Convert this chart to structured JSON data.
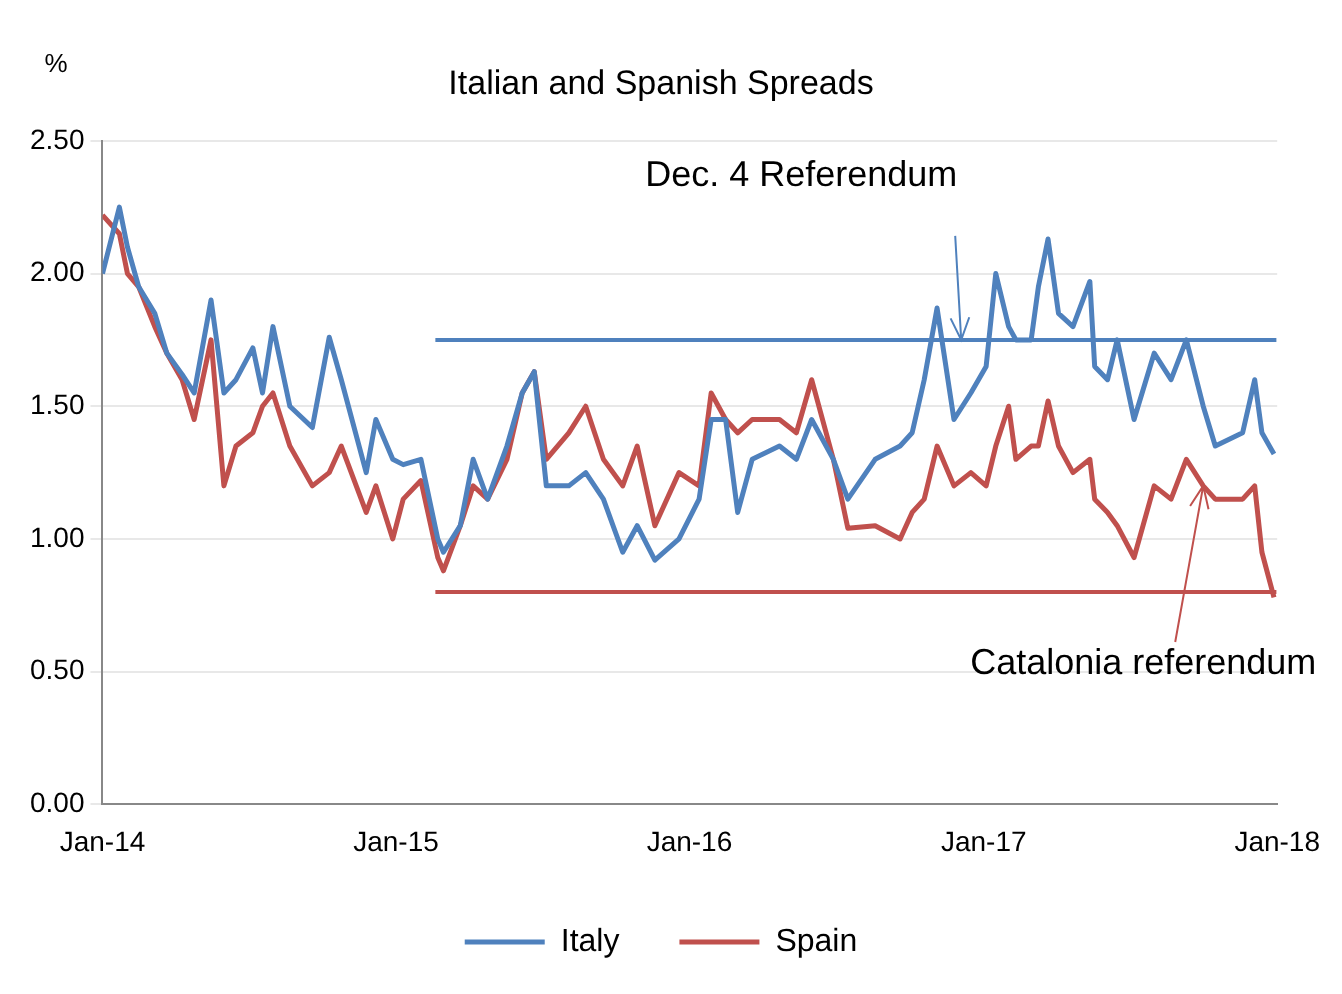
{
  "chart_data": {
    "type": "line",
    "title": "Italian and Spanish Spreads",
    "ylabel": "%",
    "x": [
      "2014-01-01",
      "2014-01-22",
      "2014-02-01",
      "2014-02-15",
      "2014-03-07",
      "2014-03-22",
      "2014-04-10",
      "2014-04-25",
      "2014-05-16",
      "2014-06-01",
      "2014-06-16",
      "2014-07-07",
      "2014-07-19",
      "2014-08-01",
      "2014-08-22",
      "2014-09-19",
      "2014-10-10",
      "2014-10-25",
      "2014-11-25",
      "2014-12-07",
      "2014-12-28",
      "2015-01-10",
      "2015-02-01",
      "2015-02-22",
      "2015-03-01",
      "2015-03-22",
      "2015-04-07",
      "2015-04-25",
      "2015-05-19",
      "2015-06-07",
      "2015-06-22",
      "2015-07-07",
      "2015-08-04",
      "2015-08-25",
      "2015-09-16",
      "2015-10-10",
      "2015-10-28",
      "2015-11-19",
      "2015-12-19",
      "2016-01-13",
      "2016-01-28",
      "2016-02-15",
      "2016-03-01",
      "2016-03-19",
      "2016-04-22",
      "2016-05-13",
      "2016-06-01",
      "2016-06-28",
      "2016-07-16",
      "2016-08-19",
      "2016-09-19",
      "2016-10-04",
      "2016-10-19",
      "2016-11-04",
      "2016-11-25",
      "2016-12-16",
      "2017-01-04",
      "2017-01-16",
      "2017-02-01",
      "2017-02-10",
      "2017-03-01",
      "2017-03-10",
      "2017-03-22",
      "2017-04-04",
      "2017-04-22",
      "2017-05-13",
      "2017-05-19",
      "2017-06-04",
      "2017-06-16",
      "2017-07-07",
      "2017-08-01",
      "2017-08-22",
      "2017-09-10",
      "2017-10-01",
      "2017-10-16",
      "2017-11-19",
      "2017-12-04",
      "2017-12-13",
      "2017-12-28"
    ],
    "series": [
      {
        "name": "Italy",
        "color": "#4f81bd",
        "values": [
          2.0,
          2.25,
          2.1,
          1.95,
          1.85,
          1.7,
          1.62,
          1.55,
          1.9,
          1.55,
          1.6,
          1.72,
          1.55,
          1.8,
          1.5,
          1.42,
          1.76,
          1.6,
          1.25,
          1.45,
          1.3,
          1.28,
          1.3,
          1.0,
          0.95,
          1.05,
          1.3,
          1.15,
          1.35,
          1.55,
          1.63,
          1.2,
          1.2,
          1.25,
          1.15,
          0.95,
          1.05,
          0.92,
          1.0,
          1.15,
          1.45,
          1.45,
          1.1,
          1.3,
          1.35,
          1.3,
          1.45,
          1.3,
          1.15,
          1.3,
          1.35,
          1.4,
          1.6,
          1.87,
          1.45,
          1.55,
          1.65,
          2.0,
          1.8,
          1.75,
          1.75,
          1.95,
          2.13,
          1.85,
          1.8,
          1.97,
          1.65,
          1.6,
          1.75,
          1.45,
          1.7,
          1.6,
          1.75,
          1.5,
          1.35,
          1.4,
          1.6,
          1.4,
          1.32
        ]
      },
      {
        "name": "Spain",
        "color": "#c0504d",
        "values": [
          2.22,
          2.15,
          2.0,
          1.95,
          1.8,
          1.7,
          1.6,
          1.45,
          1.75,
          1.2,
          1.35,
          1.4,
          1.5,
          1.55,
          1.35,
          1.2,
          1.25,
          1.35,
          1.1,
          1.2,
          1.0,
          1.15,
          1.22,
          0.93,
          0.88,
          1.05,
          1.2,
          1.15,
          1.3,
          1.55,
          1.63,
          1.3,
          1.4,
          1.5,
          1.3,
          1.2,
          1.35,
          1.05,
          1.25,
          1.2,
          1.55,
          1.45,
          1.4,
          1.45,
          1.45,
          1.4,
          1.6,
          1.3,
          1.04,
          1.05,
          1.0,
          1.1,
          1.15,
          1.35,
          1.2,
          1.25,
          1.2,
          1.35,
          1.5,
          1.3,
          1.35,
          1.35,
          1.52,
          1.35,
          1.25,
          1.3,
          1.15,
          1.1,
          1.05,
          0.93,
          1.2,
          1.15,
          1.3,
          1.2,
          1.15,
          1.15,
          1.2,
          0.95,
          0.78
        ]
      },
      {
        "type": "line",
        "color": "#4f81bd",
        "x": [
          "2015-02-19",
          "2017-12-31"
        ],
        "values": [
          1.75,
          1.75
        ]
      },
      {
        "type": "line",
        "color": "#c0504d",
        "x": [
          "2015-02-19",
          "2017-12-31"
        ],
        "values": [
          0.8,
          0.8
        ]
      }
    ],
    "annotations": [
      {
        "text": "Dec. 4 Referendum",
        "x": "2016-12-04",
        "y": 1.75
      },
      {
        "text": "Catalonia referendum",
        "x": "2017-10-01",
        "y": 1.2
      }
    ],
    "xlim": [
      "2014-01-01",
      "2018-01-01"
    ],
    "xticks": [
      {
        "value": "2014-01-01",
        "label": "Jan-14"
      },
      {
        "value": "2015-01-01",
        "label": "Jan-15"
      },
      {
        "value": "2016-01-01",
        "label": "Jan-16"
      },
      {
        "value": "2017-01-01",
        "label": "Jan-17"
      },
      {
        "value": "2018-01-01",
        "label": "Jan-18"
      }
    ],
    "ylim": [
      0,
      2.5
    ],
    "yticks": [
      {
        "value": 0,
        "label": "0.00"
      },
      {
        "value": 0.5,
        "label": "0.50"
      },
      {
        "value": 1,
        "label": "1.00"
      },
      {
        "value": 1.5,
        "label": "1.50"
      },
      {
        "value": 2,
        "label": "2.00"
      },
      {
        "value": 2.5,
        "label": "2.50"
      }
    ],
    "grid": "y",
    "legend": "bottom",
    "line_style": "solid",
    "marker": "none"
  }
}
